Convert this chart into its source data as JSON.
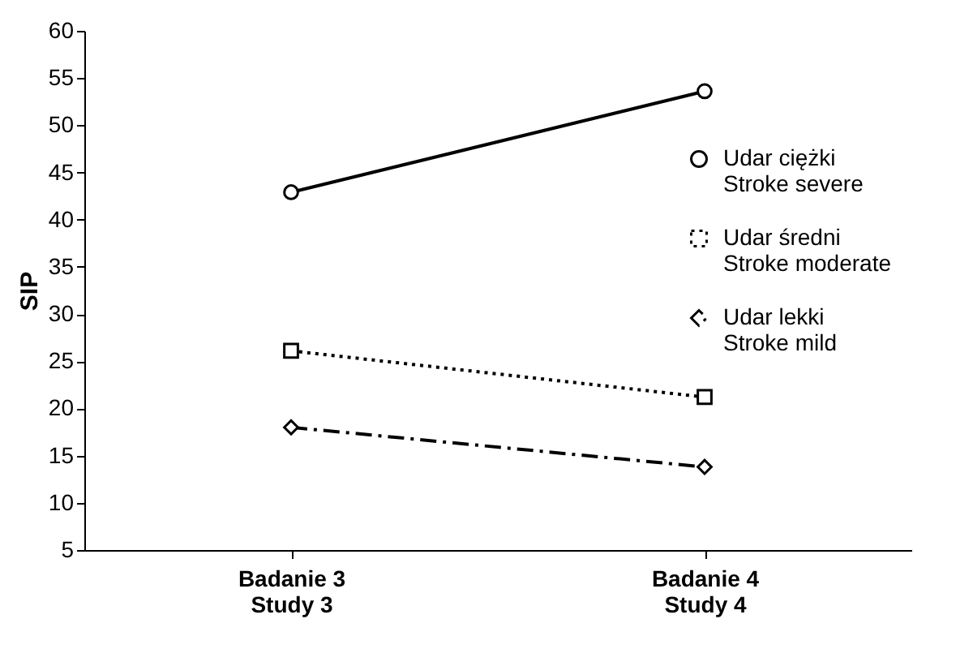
{
  "chart_data": {
    "type": "line",
    "ylabel": "SIP",
    "categories": [
      "Badanie 3\nStudy 3",
      "Badanie 4\nStudy 4"
    ],
    "series": [
      {
        "name": "Udar ciężki\nStroke severe",
        "color": "#000000",
        "values": [
          42.9,
          53.6
        ],
        "marker": "circle",
        "line_style": "solid"
      },
      {
        "name": "Udar średni\nStroke moderate",
        "color": "#000000",
        "values": [
          26.1,
          21.2
        ],
        "marker": "square",
        "line_style": "dotted"
      },
      {
        "name": "Udar lekki\nStroke mild",
        "color": "#000000",
        "values": [
          18.0,
          13.8
        ],
        "marker": "diamond",
        "line_style": "dashdot"
      }
    ],
    "ylim": [
      5,
      60
    ],
    "yticks": [
      5,
      10,
      15,
      20,
      25,
      30,
      35,
      40,
      45,
      50,
      55,
      60
    ],
    "grid": false,
    "legend": "right"
  }
}
